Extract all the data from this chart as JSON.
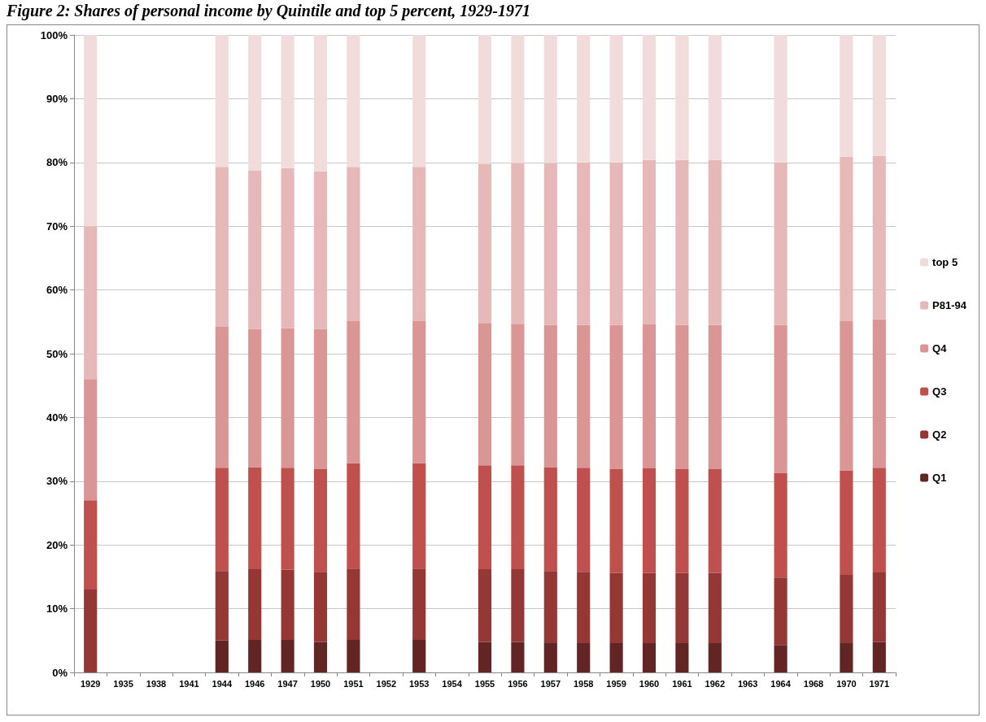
{
  "chart_data": {
    "type": "bar",
    "title": "Figure 2:  Shares of personal income by Quintile and top 5 percent, 1929-1971",
    "categories": [
      "1929",
      "1935",
      "1938",
      "1941",
      "1944",
      "1946",
      "1947",
      "1950",
      "1951",
      "1952",
      "1953",
      "1954",
      "1955",
      "1956",
      "1957",
      "1958",
      "1959",
      "1960",
      "1961",
      "1962",
      "1963",
      "1964",
      "1968",
      "1970",
      "1971"
    ],
    "stacked": true,
    "series": [
      {
        "name": "Q1",
        "color": "#632523",
        "values": [
          null,
          null,
          null,
          null,
          5.0,
          5.1,
          5.1,
          4.8,
          5.1,
          null,
          5.1,
          null,
          4.8,
          4.8,
          4.7,
          4.7,
          4.6,
          4.6,
          4.6,
          4.6,
          null,
          4.3,
          null,
          4.7,
          4.8
        ]
      },
      {
        "name": "Q2",
        "color": "#953735",
        "values": [
          13,
          null,
          null,
          null,
          10.9,
          11.1,
          11.0,
          11.0,
          11.2,
          null,
          11.2,
          null,
          11.4,
          11.4,
          11.2,
          11.1,
          11.0,
          11.0,
          11.0,
          11.0,
          null,
          10.6,
          null,
          10.6,
          10.9
        ]
      },
      {
        "name": "Q3",
        "color": "#c0504d",
        "values": [
          14,
          null,
          null,
          null,
          16.2,
          16.0,
          16.0,
          16.1,
          16.5,
          null,
          16.5,
          null,
          16.3,
          16.3,
          16.3,
          16.3,
          16.3,
          16.4,
          16.3,
          16.3,
          null,
          16.4,
          null,
          16.4,
          16.4
        ]
      },
      {
        "name": "Q4",
        "color": "#d99694",
        "values": [
          19,
          null,
          null,
          null,
          22.1,
          21.7,
          21.9,
          22.0,
          22.3,
          null,
          22.3,
          null,
          22.3,
          22.2,
          22.3,
          22.4,
          22.6,
          22.6,
          22.6,
          22.6,
          null,
          23.2,
          null,
          23.4,
          23.3
        ]
      },
      {
        "name": "P81-94",
        "color": "#e6b9b8",
        "values": [
          24,
          null,
          null,
          null,
          25.1,
          24.8,
          25.1,
          24.7,
          24.2,
          null,
          24.2,
          null,
          25.0,
          25.2,
          25.4,
          25.5,
          25.5,
          25.8,
          25.9,
          25.9,
          null,
          25.5,
          null,
          25.8,
          25.6
        ]
      },
      {
        "name": "top 5",
        "color": "#f2dcdb",
        "values": [
          30,
          null,
          null,
          null,
          20.7,
          21.3,
          20.9,
          21.4,
          20.7,
          null,
          20.7,
          null,
          20.2,
          20.1,
          20.1,
          20.0,
          20.0,
          19.6,
          19.6,
          19.6,
          null,
          20.0,
          null,
          19.1,
          19.0
        ]
      }
    ],
    "ylim": [
      0,
      100
    ],
    "yticks": [
      {
        "value": 0,
        "label": "0%"
      },
      {
        "value": 10,
        "label": "10%"
      },
      {
        "value": 20,
        "label": "20%"
      },
      {
        "value": 30,
        "label": "30%"
      },
      {
        "value": 40,
        "label": "40%"
      },
      {
        "value": 50,
        "label": "50%"
      },
      {
        "value": 60,
        "label": "60%"
      },
      {
        "value": 70,
        "label": "70%"
      },
      {
        "value": 80,
        "label": "80%"
      },
      {
        "value": 90,
        "label": "90%"
      },
      {
        "value": 100,
        "label": "100%"
      }
    ],
    "grid": "y",
    "legend": "right"
  }
}
